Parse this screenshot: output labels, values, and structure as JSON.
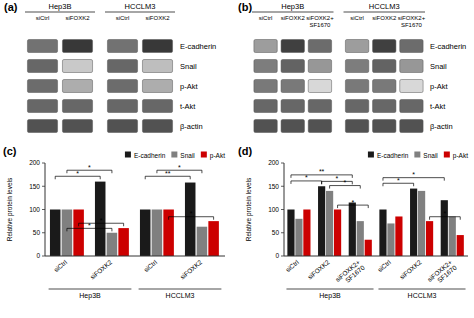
{
  "chart_data": [
    {
      "type": "heatmap",
      "title": "(a)",
      "groups": [
        "Hep3B",
        "HCCLM3"
      ],
      "categories": [
        "siCtrl",
        "siFOXK2",
        "siCtrl",
        "siFOXK2"
      ],
      "rows": [
        "E-cadherin",
        "Snail",
        "p-Akt",
        "t-Akt",
        "β-actin"
      ],
      "cells": [
        [
          0.65,
          0.92,
          0.65,
          0.92
        ],
        [
          0.7,
          0.25,
          0.7,
          0.3
        ],
        [
          0.68,
          0.38,
          0.68,
          0.38
        ],
        [
          0.7,
          0.7,
          0.7,
          0.7
        ],
        [
          0.8,
          0.8,
          0.8,
          0.8
        ]
      ],
      "zlim": [
        0,
        1
      ]
    },
    {
      "type": "heatmap",
      "title": "(b)",
      "groups": [
        "Hep3B",
        "HCCLM3"
      ],
      "categories": [
        "siCtrl",
        "siFOXK2",
        "siFOXK2+\nSF1670",
        "siCtrl",
        "siFOXK2",
        "siFOXK2+\nSF1670"
      ],
      "rows": [
        "E-cadherin",
        "Snail",
        "p-Akt",
        "t-Akt",
        "β-actin"
      ],
      "cells": [
        [
          0.45,
          0.88,
          0.68,
          0.45,
          0.88,
          0.68
        ],
        [
          0.6,
          0.72,
          0.48,
          0.6,
          0.72,
          0.48
        ],
        [
          0.62,
          0.62,
          0.18,
          0.62,
          0.62,
          0.18
        ],
        [
          0.7,
          0.7,
          0.7,
          0.7,
          0.7,
          0.7
        ],
        [
          0.8,
          0.8,
          0.8,
          0.8,
          0.8,
          0.8
        ]
      ],
      "zlim": [
        0,
        1
      ]
    },
    {
      "type": "bar",
      "title": "(c)",
      "ylabel": "Relative protein levels",
      "categories": [
        "siCtrl",
        "siFOXK2",
        "siCtrl",
        "siFOXK2"
      ],
      "groups": [
        "Hep3B",
        "HCCLM3"
      ],
      "series": [
        {
          "name": "E-cadherin",
          "color": "#1a1a1a",
          "values": [
            100,
            160,
            100,
            158
          ]
        },
        {
          "name": "Snail",
          "color": "#808080",
          "values": [
            100,
            50,
            100,
            63
          ]
        },
        {
          "name": "p-Akt",
          "color": "#cc0000",
          "values": [
            100,
            60,
            100,
            75
          ]
        }
      ],
      "ylim": [
        0,
        200
      ],
      "yticks": [
        0,
        50,
        100,
        150,
        200
      ],
      "legend": "upper right",
      "annotations": [
        {
          "text": "*",
          "from": 0,
          "to": 1,
          "series": 0,
          "y": 165
        },
        {
          "text": "*",
          "from": 0,
          "to": 1,
          "series": 1,
          "y": 178
        },
        {
          "text": "*",
          "from": 0,
          "to": 1,
          "series": 1,
          "y": 53
        },
        {
          "text": "*",
          "from": 0,
          "to": 1,
          "series": 2,
          "y": 64
        },
        {
          "text": "**",
          "from": 2,
          "to": 3,
          "series": 0,
          "y": 165
        },
        {
          "text": "*",
          "from": 2,
          "to": 3,
          "series": 1,
          "y": 178
        },
        {
          "text": "*",
          "from": 2,
          "to": 3,
          "series": 2,
          "y": 78
        }
      ]
    },
    {
      "type": "bar",
      "title": "(d)",
      "ylabel": "Relative protein levels",
      "categories": [
        "siCtrl",
        "siFOXK2",
        "siFOXK2+\nSF1670",
        "siCtrl",
        "siFOXK2",
        "siFOXK2+\nSF1670"
      ],
      "groups": [
        "Hep3B",
        "HCCLM3"
      ],
      "series": [
        {
          "name": "E-cadherin",
          "color": "#1a1a1a",
          "values": [
            100,
            150,
            115,
            100,
            145,
            120
          ]
        },
        {
          "name": "Snail",
          "color": "#808080",
          "values": [
            80,
            140,
            75,
            70,
            140,
            85
          ]
        },
        {
          "name": "p-Akt",
          "color": "#cc0000",
          "values": [
            100,
            100,
            35,
            85,
            75,
            45
          ]
        }
      ],
      "ylim": [
        0,
        200
      ],
      "yticks": [
        0,
        50,
        100,
        150,
        200
      ],
      "legend": "upper right",
      "annotations": [
        {
          "text": "*",
          "from": 0,
          "to": 1,
          "series": 0,
          "y": 155
        },
        {
          "text": "**",
          "from": 0,
          "to": 2,
          "series": 0,
          "y": 168
        },
        {
          "text": "*",
          "from": 1,
          "to": 2,
          "series": 0,
          "y": 154
        },
        {
          "text": "*",
          "from": 1,
          "to": 2,
          "series": 1,
          "y": 145
        },
        {
          "text": "*",
          "from": 1,
          "to": 2,
          "series": 2,
          "y": 103
        },
        {
          "text": "*",
          "from": 3,
          "to": 4,
          "series": 0,
          "y": 150
        },
        {
          "text": "*",
          "from": 3,
          "to": 5,
          "series": 0,
          "y": 162
        },
        {
          "text": "*",
          "from": 4,
          "to": 5,
          "series": 2,
          "y": 78
        }
      ]
    }
  ]
}
